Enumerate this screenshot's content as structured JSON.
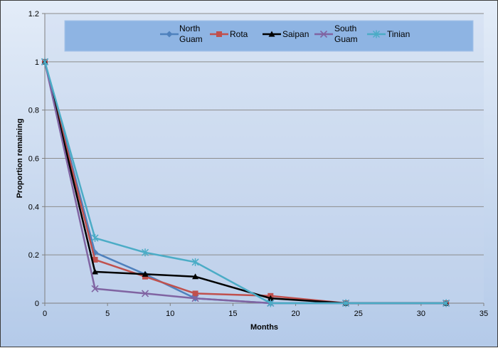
{
  "chart_data": {
    "type": "line",
    "title": "",
    "xlabel": "Months",
    "ylabel": "Proportion remaining",
    "xlim": [
      0,
      35
    ],
    "ylim": [
      0,
      1.2
    ],
    "x_ticks": [
      0,
      5,
      10,
      15,
      20,
      25,
      30,
      35
    ],
    "y_ticks": [
      0,
      0.2,
      0.4,
      0.6,
      0.8,
      1,
      1.2
    ],
    "y_tick_labels": [
      "0",
      "0.2",
      "0.4",
      "0.6",
      "0.8",
      "1",
      "1.2"
    ],
    "grid": "horizontal",
    "legend_position": "top",
    "series": [
      {
        "name": "North Guam",
        "legend_lines": [
          "North",
          "Guam"
        ],
        "color": "#4f81bd",
        "marker": "diamond",
        "x": [
          0,
          4,
          8,
          12,
          18,
          24,
          32
        ],
        "y": [
          1,
          0.21,
          0.12,
          0.02,
          0,
          0,
          0
        ]
      },
      {
        "name": "Rota",
        "legend_lines": [
          "Rota"
        ],
        "color": "#c0504d",
        "marker": "square",
        "x": [
          0,
          4,
          8,
          12,
          18,
          24,
          32
        ],
        "y": [
          1,
          0.18,
          0.11,
          0.04,
          0.03,
          0,
          0
        ]
      },
      {
        "name": "Saipan",
        "legend_lines": [
          "Saipan"
        ],
        "color": "#000000",
        "marker": "triangle",
        "x": [
          0,
          4,
          8,
          12,
          18,
          24,
          32
        ],
        "y": [
          1,
          0.13,
          0.12,
          0.11,
          0.02,
          0,
          0
        ]
      },
      {
        "name": "South Guam",
        "legend_lines": [
          "South",
          "Guam"
        ],
        "color": "#8064a2",
        "marker": "x",
        "x": [
          0,
          4,
          8,
          12,
          18,
          24,
          32
        ],
        "y": [
          1,
          0.06,
          0.04,
          0.02,
          0,
          0,
          0
        ]
      },
      {
        "name": "Tinian",
        "legend_lines": [
          "Tinian"
        ],
        "color": "#4bacc6",
        "marker": "star",
        "x": [
          0,
          4,
          8,
          12,
          18,
          24,
          32
        ],
        "y": [
          1,
          0.27,
          0.21,
          0.17,
          0,
          0,
          0
        ]
      }
    ]
  }
}
